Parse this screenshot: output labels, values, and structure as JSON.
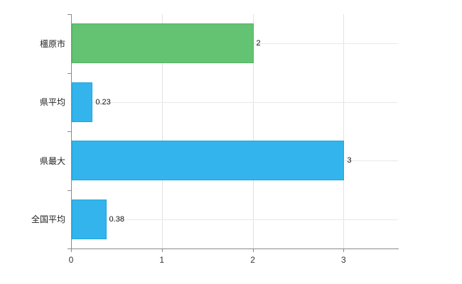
{
  "chart": {
    "background": "#ffffff"
  },
  "chart_data": {
    "type": "bar",
    "orientation": "horizontal",
    "categories": [
      "橿原市",
      "県平均",
      "県最大",
      "全国平均"
    ],
    "values": [
      2,
      0.23,
      3,
      0.38
    ],
    "value_labels": [
      "2",
      "0.23",
      "3",
      "0.38"
    ],
    "bar_colors": [
      "#63c373",
      "#33b4ec",
      "#33b4ec",
      "#33b4ec"
    ],
    "bar_border_colors": [
      "#54b366",
      "#24a5de",
      "#24a5de",
      "#24a5de"
    ],
    "xticks": [
      "0",
      "1",
      "2",
      "3"
    ],
    "xtick_values": [
      0,
      1,
      2,
      3
    ],
    "xlim": [
      0,
      3.6
    ],
    "grid": true,
    "legend": false,
    "xlabel": "",
    "ylabel": ""
  },
  "colors": {
    "grid": "#e2e2e2",
    "axis": "#8a8a8a",
    "text": "#222222"
  }
}
